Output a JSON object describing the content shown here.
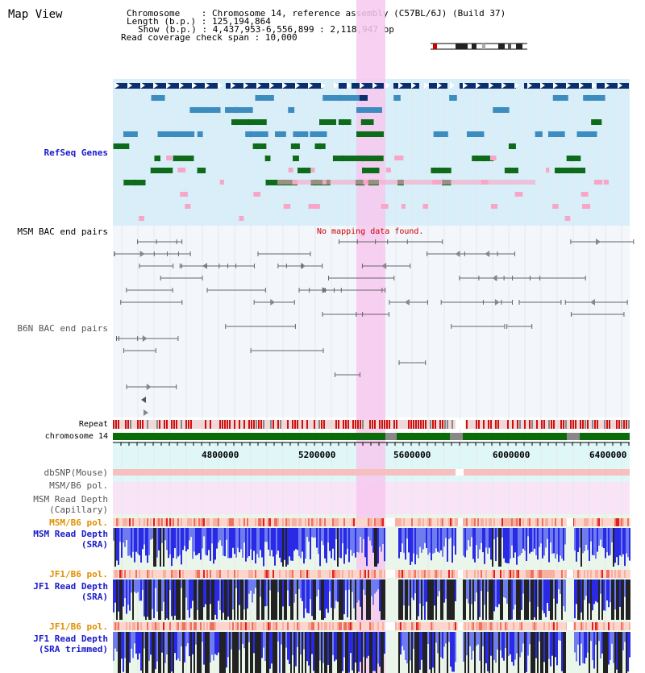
{
  "page": {
    "title": "Map View"
  },
  "header": {
    "chromosome_label": "Chromosome",
    "chromosome_value": "Chromosome 14, reference assembly (C57BL/6J) (Build 37)",
    "length_label": "Length (b.p.)",
    "length_value": "125,194,864",
    "show_label": "Show (b.p.)",
    "show_value": "4,437,953-6,556,899 : 2,118,947 bp",
    "coverage_label": "Read coverage check span",
    "coverage_value": "10,000"
  },
  "tracks": {
    "refseq": "RefSeq Genes",
    "msm_bac": "MSM BAC end pairs",
    "no_data": "No mapping data found.",
    "b6n_bac": "B6N BAC end pairs",
    "repeat": "Repeat",
    "chromosome": "chromosome 14",
    "dbsnp": "dbSNP(Mouse)",
    "msm_b6_pol_1": "MSM/B6 pol.",
    "msm_read_depth_cap_1": "MSM Read Depth",
    "msm_read_depth_cap_2": "(Capillary)",
    "msm_b6_pol_2": "MSM/B6 pol.",
    "msm_read_depth_sra_1": "MSM Read Depth",
    "msm_read_depth_sra_2": "(SRA)",
    "jf1_b6_pol_1": "JF1/B6 pol.",
    "jf1_read_depth_sra_1": "JF1 Read Depth",
    "jf1_read_depth_sra_2": "(SRA)",
    "jf1_b6_pol_2": "JF1/B6 pol.",
    "jf1_read_depth_trim_1": "JF1 Read Depth",
    "jf1_read_depth_trim_2": "(SRA trimmed)"
  },
  "axis": {
    "ticks": [
      "4800000",
      "5200000",
      "5600000",
      "6000000",
      "6400000"
    ]
  },
  "colors": {
    "refseq_bg": "#d8eef8",
    "highlight": "#f7c8ee",
    "navy": "#1a1acc",
    "orange": "#e09000",
    "gene_dark": "#0b2f6e",
    "gene_mid": "#3c8cbf",
    "gene_green": "#0d6b1a",
    "gene_pink": "#f7a6c8",
    "chrom_green": "#0a6b0a",
    "repeat_red": "#d01010",
    "depth_blue": "#2a2ae6",
    "depth_black": "#222222"
  }
}
